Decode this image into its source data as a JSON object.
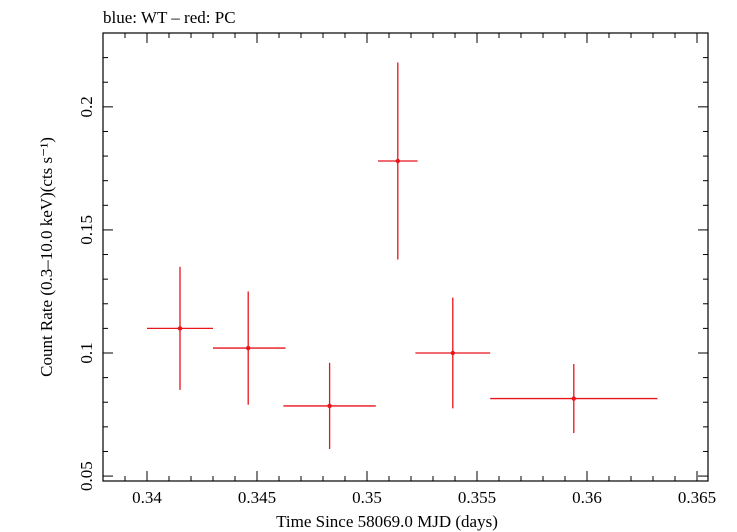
{
  "chart_data": {
    "type": "scatter",
    "title": "blue: WT – red: PC",
    "xlabel": "Time Since 58069.0 MJD (days)",
    "ylabel": "Count Rate (0.3–10.0 keV)(cts s⁻¹)",
    "xlim": [
      0.338,
      0.3655
    ],
    "ylim": [
      0.048,
      0.23
    ],
    "xticks": [
      0.34,
      0.345,
      0.35,
      0.355,
      0.36,
      0.365
    ],
    "xtick_labels": [
      "0.34",
      "0.345",
      "0.35",
      "0.355",
      "0.36",
      "0.365"
    ],
    "yticks": [
      0.05,
      0.1,
      0.15,
      0.2
    ],
    "ytick_labels": [
      "0.05",
      "0.1",
      "0.15",
      "0.2"
    ],
    "grid": false,
    "series": [
      {
        "color": "#e8141a",
        "points": [
          {
            "x": 0.3415,
            "y": 0.11,
            "xerr_low": 0.0015,
            "xerr_high": 0.0015,
            "yerr_low": 0.025,
            "yerr_high": 0.025
          },
          {
            "x": 0.3446,
            "y": 0.102,
            "xerr_low": 0.0016,
            "xerr_high": 0.0017,
            "yerr_low": 0.023,
            "yerr_high": 0.023
          },
          {
            "x": 0.3483,
            "y": 0.0785,
            "xerr_low": 0.0021,
            "xerr_high": 0.0021,
            "yerr_low": 0.0175,
            "yerr_high": 0.0175
          },
          {
            "x": 0.3514,
            "y": 0.178,
            "xerr_low": 0.0009,
            "xerr_high": 0.0009,
            "yerr_low": 0.04,
            "yerr_high": 0.04
          },
          {
            "x": 0.3539,
            "y": 0.1,
            "xerr_low": 0.0017,
            "xerr_high": 0.0017,
            "yerr_low": 0.0225,
            "yerr_high": 0.0225
          },
          {
            "x": 0.3594,
            "y": 0.0815,
            "xerr_low": 0.0038,
            "xerr_high": 0.0038,
            "yerr_low": 0.014,
            "yerr_high": 0.014
          }
        ]
      }
    ]
  }
}
